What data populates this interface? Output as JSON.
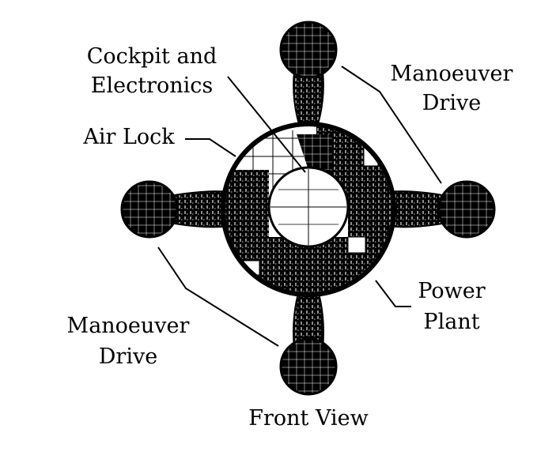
{
  "diagram": {
    "labels": {
      "cockpit": {
        "line1": "Cockpit and",
        "line2": "Electronics"
      },
      "air_lock": "Air Lock",
      "manoeuver_top": {
        "line1": "Manoeuver",
        "line2": "Drive"
      },
      "manoeuver_bottom": {
        "line1": "Manoeuver",
        "line2": "Drive"
      },
      "power_plant": {
        "line1": "Power",
        "line2": "Plant"
      },
      "caption": "Front View"
    },
    "colors": {
      "ink": "#000000",
      "paper": "#ffffff",
      "hatch": "#1a1a1a"
    }
  }
}
